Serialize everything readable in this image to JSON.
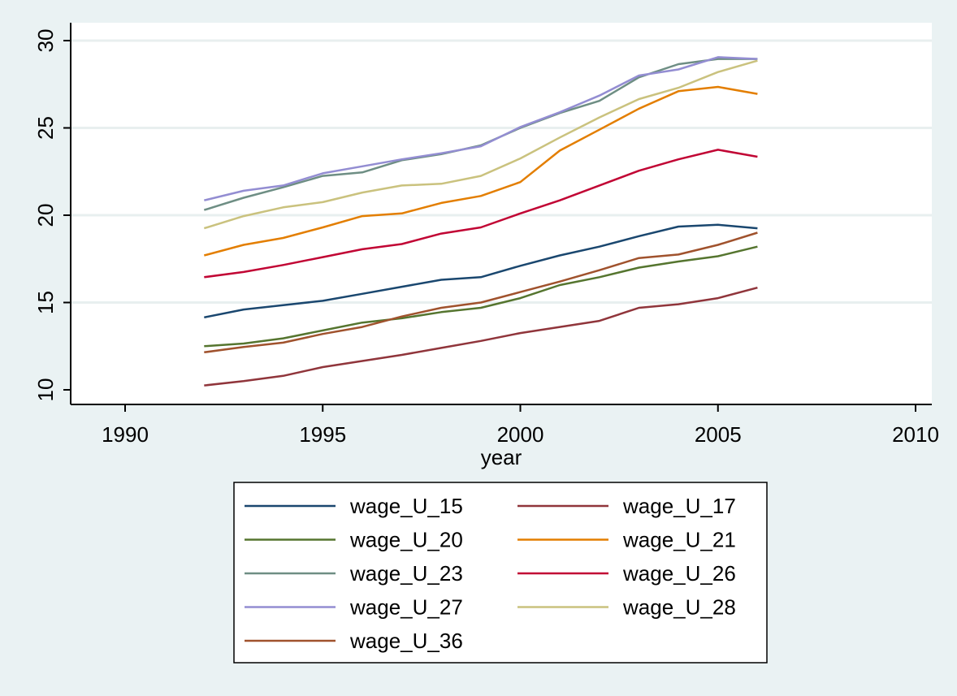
{
  "chart_data": {
    "type": "line",
    "xlabel": "year",
    "ylabel": "",
    "xlim": [
      1990,
      2010
    ],
    "ylim": [
      10,
      30
    ],
    "x_ticks": [
      1990,
      1995,
      2000,
      2005,
      2010
    ],
    "y_ticks": [
      10,
      15,
      20,
      25,
      30
    ],
    "grid": "horizontal",
    "legend_position": "bottom",
    "x": [
      1992,
      1993,
      1994,
      1995,
      1996,
      1997,
      1998,
      1999,
      2000,
      2001,
      2002,
      2003,
      2004,
      2005,
      2006
    ],
    "series": [
      {
        "name": "wage_U_15",
        "color": "#1a476f",
        "values": [
          14.15,
          14.6,
          14.85,
          15.1,
          15.5,
          15.9,
          16.3,
          16.45,
          17.1,
          17.7,
          18.2,
          18.8,
          19.35,
          19.45,
          19.25
        ]
      },
      {
        "name": "wage_U_17",
        "color": "#90353b",
        "values": [
          10.25,
          10.5,
          10.8,
          11.3,
          11.65,
          12.0,
          12.4,
          12.8,
          13.25,
          13.6,
          13.95,
          14.7,
          14.9,
          15.25,
          15.85
        ]
      },
      {
        "name": "wage_U_20",
        "color": "#55752f",
        "values": [
          12.5,
          12.65,
          12.95,
          13.4,
          13.85,
          14.1,
          14.45,
          14.7,
          15.25,
          16.0,
          16.45,
          17.0,
          17.35,
          17.65,
          18.2
        ]
      },
      {
        "name": "wage_U_21",
        "color": "#e37e00",
        "values": [
          17.7,
          18.3,
          18.7,
          19.3,
          19.95,
          20.1,
          20.7,
          21.1,
          21.9,
          23.7,
          24.9,
          26.1,
          27.1,
          27.35,
          26.95
        ]
      },
      {
        "name": "wage_U_23",
        "color": "#6e8e84",
        "values": [
          20.3,
          21.0,
          21.6,
          22.25,
          22.45,
          23.15,
          23.5,
          24.0,
          25.0,
          25.85,
          26.55,
          27.9,
          28.65,
          28.95,
          28.95
        ]
      },
      {
        "name": "wage_U_26",
        "color": "#c10534",
        "values": [
          16.45,
          16.75,
          17.15,
          17.6,
          18.05,
          18.35,
          18.95,
          19.3,
          20.1,
          20.85,
          21.7,
          22.55,
          23.2,
          23.75,
          23.35
        ]
      },
      {
        "name": "wage_U_27",
        "color": "#938dd2",
        "values": [
          20.85,
          21.4,
          21.7,
          22.4,
          22.8,
          23.2,
          23.55,
          23.95,
          25.05,
          25.9,
          26.85,
          28.0,
          28.35,
          29.05,
          28.95
        ]
      },
      {
        "name": "wage_U_28",
        "color": "#cac27e",
        "values": [
          19.25,
          19.95,
          20.45,
          20.75,
          21.3,
          21.7,
          21.8,
          22.25,
          23.25,
          24.45,
          25.6,
          26.65,
          27.3,
          28.2,
          28.85
        ]
      },
      {
        "name": "wage_U_36",
        "color": "#a0522d",
        "values": [
          12.15,
          12.45,
          12.7,
          13.2,
          13.6,
          14.2,
          14.7,
          15.0,
          15.6,
          16.2,
          16.85,
          17.55,
          17.75,
          18.3,
          19.0
        ]
      }
    ]
  }
}
